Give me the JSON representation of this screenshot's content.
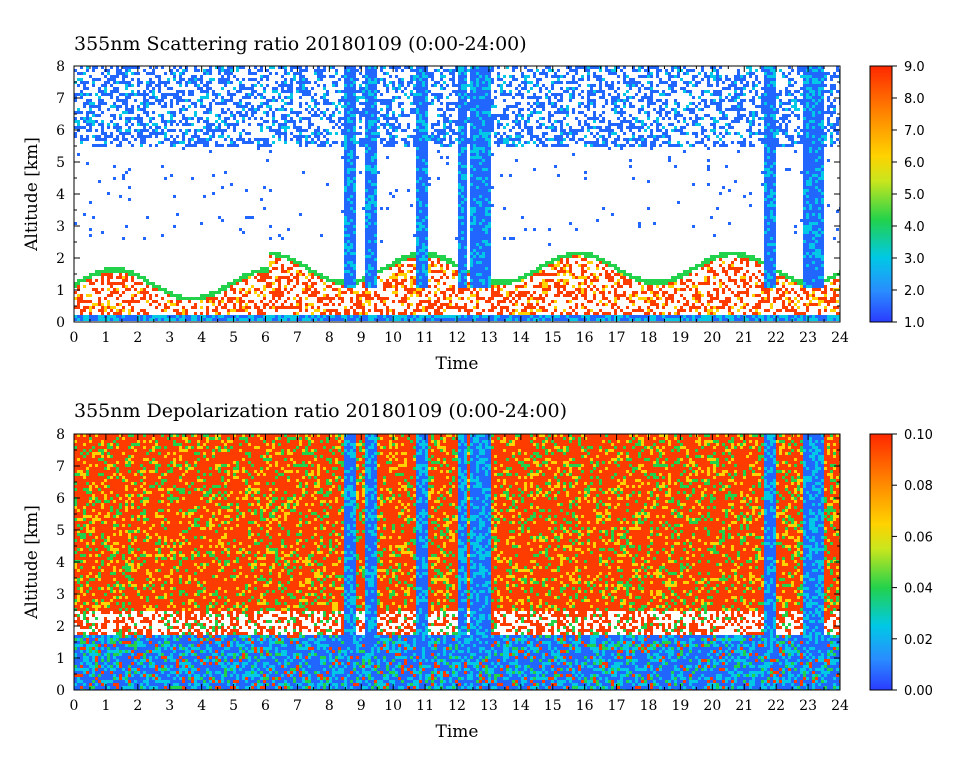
{
  "chart_data": [
    {
      "type": "heatmap",
      "title": "355nm Scattering ratio  20180109 (0:00-24:00)",
      "xlabel": "Time",
      "ylabel": "Altitude [km]",
      "xlim": [
        0,
        24
      ],
      "ylim": [
        0,
        8
      ],
      "xticks": [
        "0",
        "1",
        "2",
        "3",
        "4",
        "5",
        "6",
        "7",
        "8",
        "9",
        "10",
        "11",
        "12",
        "13",
        "14",
        "15",
        "16",
        "17",
        "18",
        "19",
        "20",
        "21",
        "22",
        "23",
        "24"
      ],
      "yticks": [
        "0",
        "1",
        "2",
        "3",
        "4",
        "5",
        "6",
        "7",
        "8"
      ],
      "colorbar": {
        "range": [
          1.0,
          9.0
        ],
        "labels": [
          "1.0",
          "2.0",
          "3.0",
          "4.0",
          "5.0",
          "6.0",
          "7.0",
          "8.0",
          "9.0"
        ]
      },
      "colors": [
        "#2166ff",
        "#00c8e6",
        "#23d24b",
        "#ffd200",
        "#ff3c00"
      ]
    },
    {
      "type": "heatmap",
      "title": "355nm Depolarization ratio  20180109 (0:00-24:00)",
      "xlabel": "Time",
      "ylabel": "Altitude [km]",
      "xlim": [
        0,
        24
      ],
      "ylim": [
        0,
        8
      ],
      "xticks": [
        "0",
        "1",
        "2",
        "3",
        "4",
        "5",
        "6",
        "7",
        "8",
        "9",
        "10",
        "11",
        "12",
        "13",
        "14",
        "15",
        "16",
        "17",
        "18",
        "19",
        "20",
        "21",
        "22",
        "23",
        "24"
      ],
      "yticks": [
        "0",
        "1",
        "2",
        "3",
        "4",
        "5",
        "6",
        "7",
        "8"
      ],
      "colorbar": {
        "range": [
          0.0,
          0.1
        ],
        "labels": [
          "0.00",
          "0.02",
          "0.04",
          "0.06",
          "0.08",
          "0.10"
        ]
      },
      "colors": [
        "#2166ff",
        "#00c8e6",
        "#23d24b",
        "#ffd200",
        "#ff3c00"
      ]
    }
  ]
}
